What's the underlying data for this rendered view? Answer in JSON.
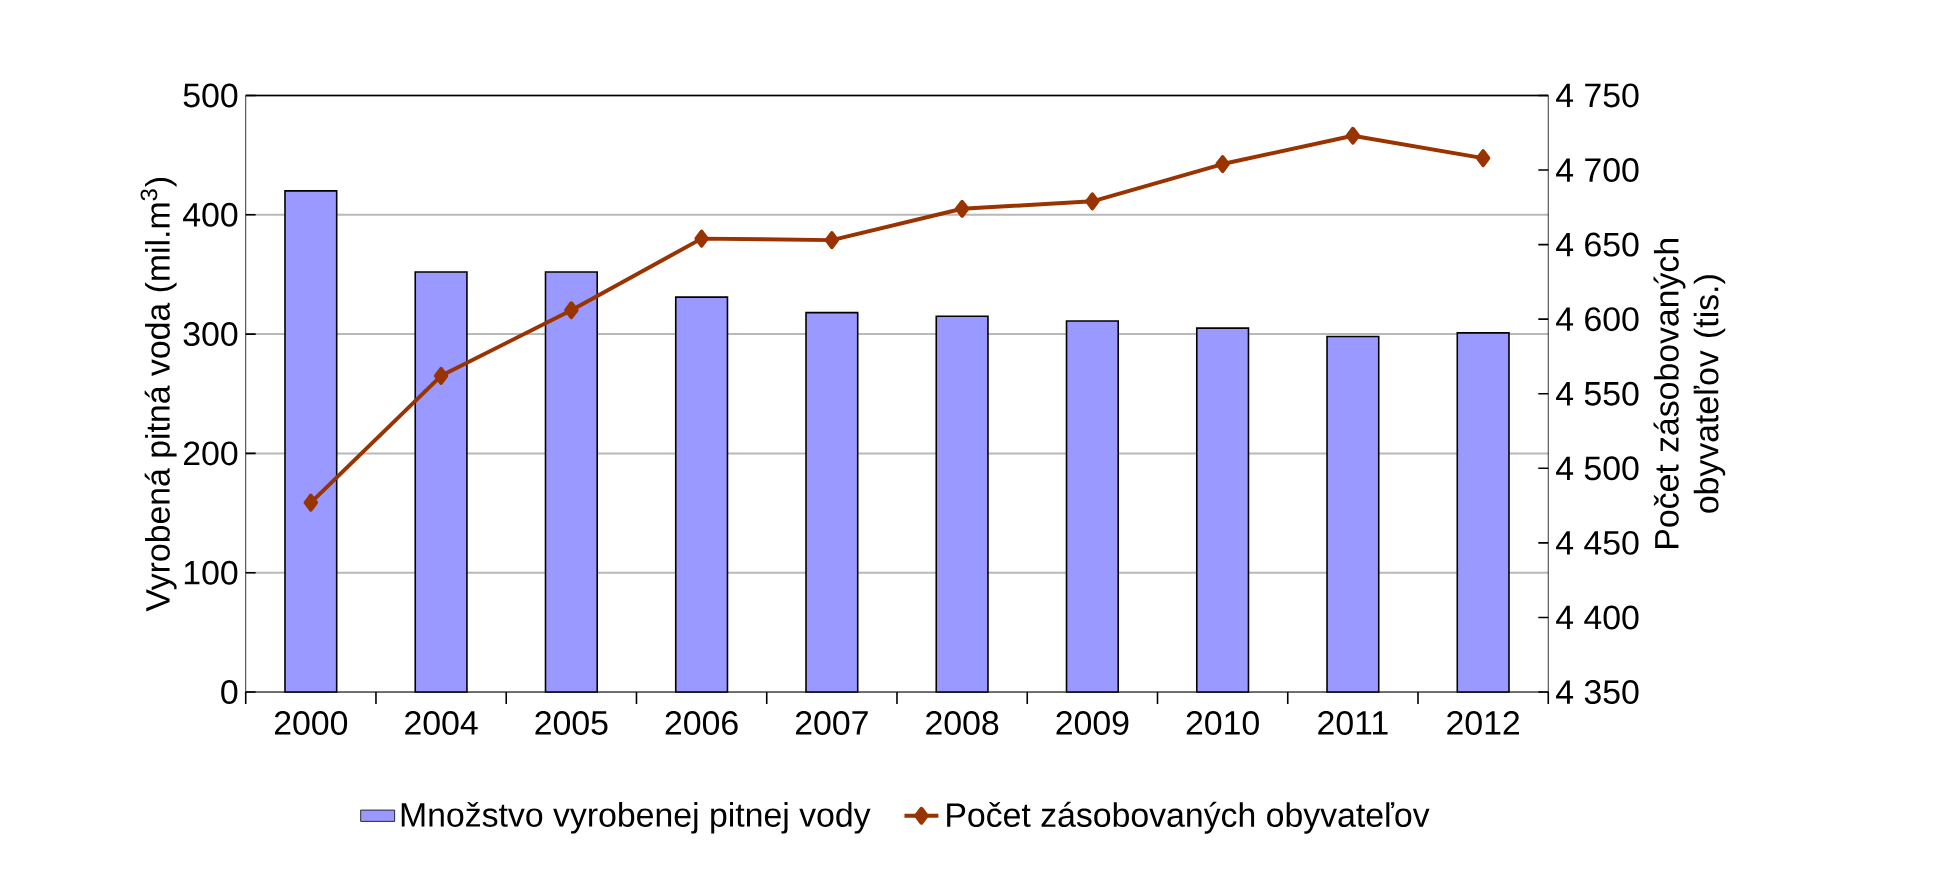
{
  "chart_data": {
    "type": "bar",
    "categories": [
      "2000",
      "2004",
      "2005",
      "2006",
      "2007",
      "2008",
      "2009",
      "2010",
      "2011",
      "2012"
    ],
    "series": [
      {
        "name": "Množstvo vyrobenej pitnej vody",
        "color": "#9999ff",
        "values": [
          420,
          352,
          352,
          331,
          318,
          315,
          311,
          305,
          298,
          301
        ]
      },
      {
        "name": "Počet zásobovaných obyvateľov",
        "type": "line",
        "axis": "y2",
        "color": "#993300",
        "marker": "diamond",
        "values": [
          4477,
          4562,
          4606,
          4654,
          4653,
          4674,
          4679,
          4704,
          4723,
          4708
        ]
      }
    ],
    "ylabel": "Vyrobená pitná voda (mil.m$^{3}$)",
    "y2label": "Počet zásobovaných obyvateľov (tis.)",
    "ylim": [
      0,
      500
    ],
    "yticks": [
      0,
      100,
      200,
      300,
      400,
      500
    ],
    "y2lim": [
      4350,
      4750
    ],
    "y2ticks": [
      {
        "value": 4350,
        "label": "4 350"
      },
      {
        "value": 4400,
        "label": "4 400"
      },
      {
        "value": 4450,
        "label": "4 450"
      },
      {
        "value": 4500,
        "label": "4 500"
      },
      {
        "value": 4550,
        "label": "4 550"
      },
      {
        "value": 4600,
        "label": "4 600"
      },
      {
        "value": 4650,
        "label": "4 650"
      },
      {
        "value": 4700,
        "label": "4 700"
      },
      {
        "value": 4750,
        "label": "4 750"
      }
    ],
    "grid": "y",
    "legend": "bottom"
  }
}
